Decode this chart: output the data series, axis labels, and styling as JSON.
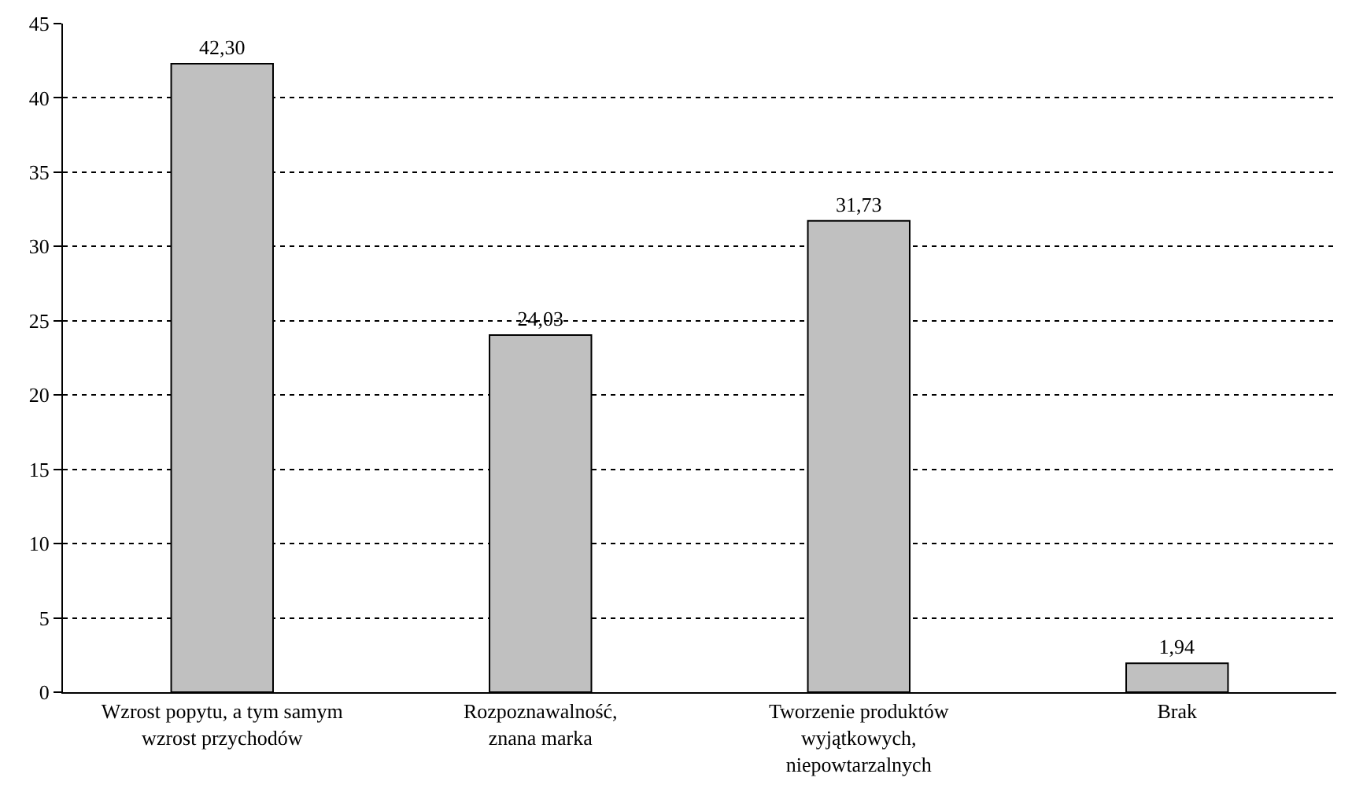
{
  "chart_data": {
    "type": "bar",
    "categories": [
      "Wzrost popytu, a tym samym\nwzrost przychodów",
      "Rozpoznawalność,\nznana marka",
      "Tworzenie produktów\nwyjątkowych,\nniepowtarzalnych",
      "Brak"
    ],
    "values": [
      42.3,
      24.03,
      31.73,
      1.94
    ],
    "value_labels": [
      "42,30",
      "24,03",
      "31,73",
      "1,94"
    ],
    "color": "#c0c0c0",
    "ylim": [
      0,
      45
    ],
    "yticks": [
      0,
      5,
      10,
      15,
      20,
      25,
      30,
      35,
      40,
      45
    ],
    "grid": "y",
    "legend": false
  }
}
